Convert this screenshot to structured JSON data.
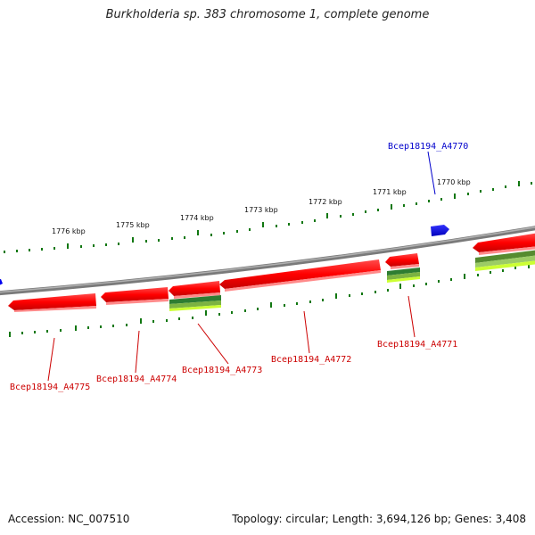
{
  "title": "Burkholderia sp. 383 chromosome 1, complete genome",
  "footer": {
    "accession": "Accession: NC_007510",
    "summary": "Topology: circular; Length: 3,694,126 bp; Genes: 3,408"
  },
  "ticks": [
    "1770 kbp",
    "1771 kbp",
    "1772 kbp",
    "1773 kbp",
    "1774 kbp",
    "1775 kbp",
    "1776 kbp"
  ],
  "genes": [
    {
      "label": "Bcep18194_A4770",
      "color": "#0000cc"
    },
    {
      "label": "Bcep18194_A4771",
      "color": "#cc0000"
    },
    {
      "label": "Bcep18194_A4772",
      "color": "#cc0000"
    },
    {
      "label": "Bcep18194_A4773",
      "color": "#cc0000"
    },
    {
      "label": "Bcep18194_A4774",
      "color": "#cc0000"
    },
    {
      "label": "Bcep18194_A4775",
      "color": "#cc0000"
    }
  ],
  "colors": {
    "forward_strand": "#0000ff",
    "reverse_strand": "#ff0000",
    "backbone": "#808080",
    "tick": "#007700",
    "feature_green": "#2e7d32",
    "feature_yellow": "#ccff33"
  }
}
